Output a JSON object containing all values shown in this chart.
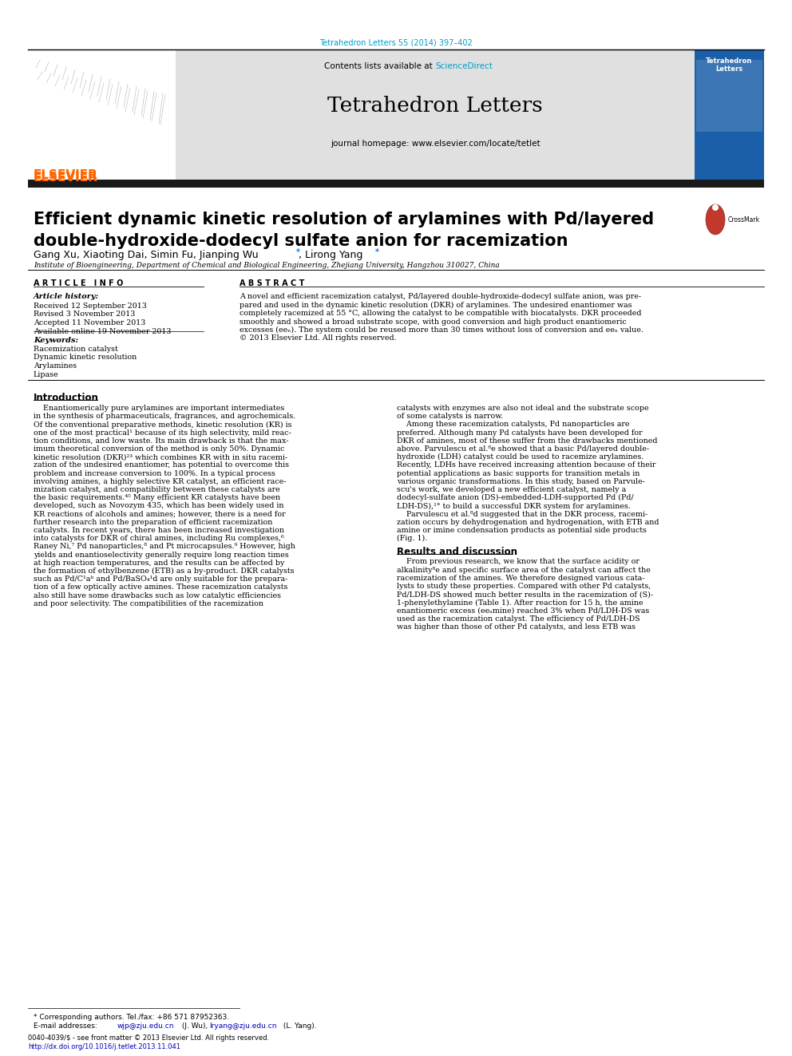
{
  "page_bg": "#ffffff",
  "top_citation": "Tetrahedron Letters 55 (2014) 397–402",
  "top_citation_color": "#00a0c6",
  "journal_name": "Tetrahedron Letters",
  "journal_homepage": "journal homepage: www.elsevier.com/locate/tetlet",
  "contents_text": "Contents lists available at ",
  "sciencedirect_text": "ScienceDirect",
  "sciencedirect_color": "#00a0c6",
  "header_bg": "#e0e0e0",
  "dark_bar_color": "#1a1a1a",
  "elsevier_color": "#FF6600",
  "article_title_line1": "Efficient dynamic kinetic resolution of arylamines with Pd/layered",
  "article_title_line2": "double-hydroxide-dodecyl sulfate anion for racemization",
  "authors": "Gang Xu, Xiaoting Dai, Simin Fu, Jianping Wu",
  "authors2": ", Lirong Yang",
  "affiliation": "Institute of Bioengineering, Department of Chemical and Biological Engineering, Zhejiang University, Hangzhou 310027, China",
  "article_info_header": "A R T I C L E   I N F O",
  "abstract_header": "A B S T R A C T",
  "article_history_label": "Article history:",
  "received": "Received 12 September 2013",
  "revised": "Revised 3 November 2013",
  "accepted": "Accepted 11 November 2013",
  "available": "Available online 19 November 2013",
  "keywords_label": "Keywords:",
  "keywords": [
    "Racemization catalyst",
    "Dynamic kinetic resolution",
    "Arylamines",
    "Lipase"
  ],
  "intro_header": "Introduction",
  "results_header": "Results and discussion",
  "footnote_star": "* Corresponding authors. Tel./fax: +86 571 87952363.",
  "footnote_email1": "E-mail addresses: ",
  "footnote_email2": "wjp@zju.edu.cn",
  "footnote_email3": " (J. Wu), ",
  "footnote_email4": "lryang@zju.edu.cn",
  "footnote_email5": " (L. Yang).",
  "footer_issn": "0040-4039/$ - see front matter © 2013 Elsevier Ltd. All rights reserved.",
  "footer_doi": "http://dx.doi.org/10.1016/j.tetlet.2013.11.041",
  "footer_doi_color": "#0000bb",
  "link_color": "#0000bb"
}
